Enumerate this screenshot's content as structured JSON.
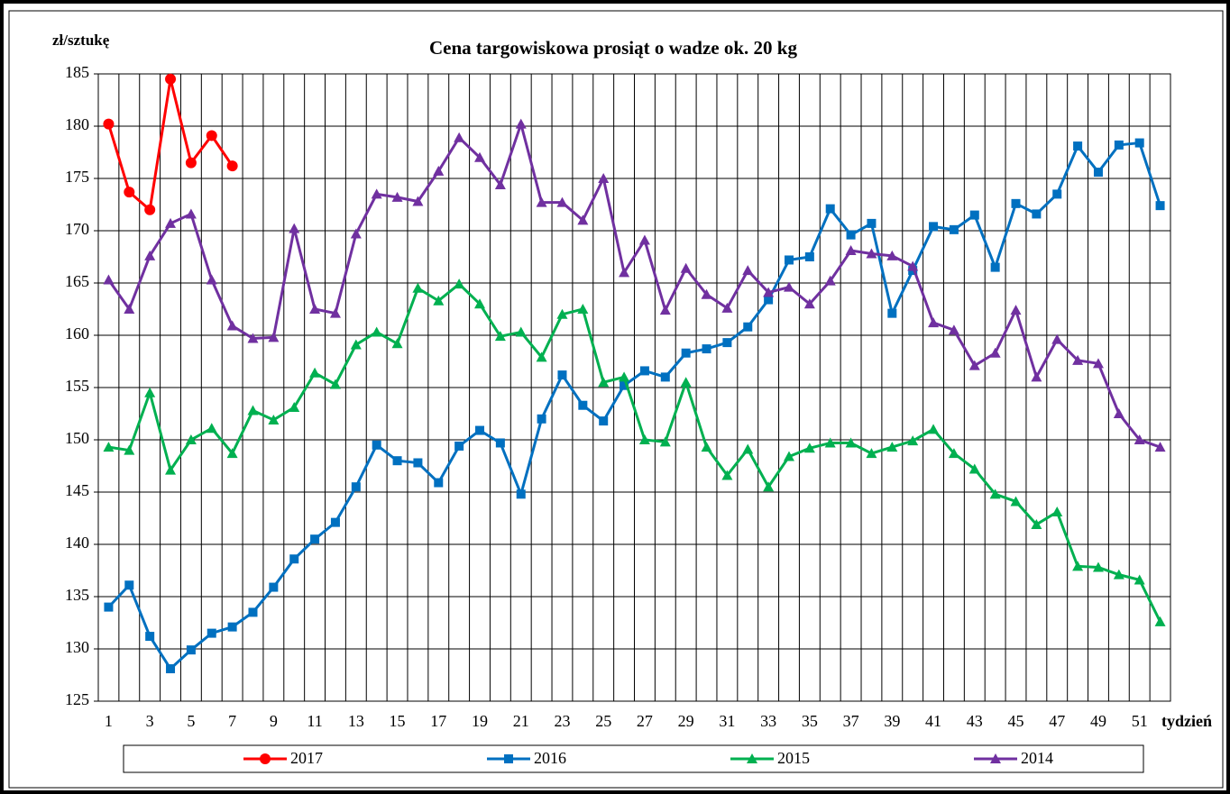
{
  "chart_data": {
    "type": "line",
    "title": "Cena targowiskowa prosiąt o wadze ok. 20 kg",
    "y_label": "zł/sztukę",
    "x_label": "tydzień",
    "categories": [
      1,
      null,
      3,
      null,
      5,
      null,
      7,
      null,
      9,
      null,
      11,
      null,
      13,
      null,
      15,
      null,
      17,
      null,
      19,
      null,
      21,
      null,
      23,
      null,
      25,
      null,
      27,
      null,
      29,
      null,
      31,
      null,
      33,
      null,
      35,
      null,
      37,
      null,
      39,
      null,
      41,
      null,
      43,
      null,
      45,
      null,
      47,
      null,
      49,
      null,
      51,
      null
    ],
    "ylim": [
      125,
      185
    ],
    "yticks": [
      125,
      130,
      135,
      140,
      145,
      150,
      155,
      160,
      165,
      170,
      175,
      180,
      185
    ],
    "grid": true,
    "legend": "bottom",
    "series": [
      {
        "name": "2017",
        "color": "#ff0000",
        "marker": "circle",
        "values": [
          180.2,
          173.7,
          172.0,
          184.5,
          176.5,
          179.1,
          176.2,
          null,
          null,
          null,
          null,
          null,
          null,
          null,
          null,
          null,
          null,
          null,
          null,
          null,
          null,
          null,
          null,
          null,
          null,
          null,
          null,
          null,
          null,
          null,
          null,
          null,
          null,
          null,
          null,
          null,
          null,
          null,
          null,
          null,
          null,
          null,
          null,
          null,
          null,
          null,
          null,
          null,
          null,
          null,
          null,
          null
        ]
      },
      {
        "name": "2016",
        "color": "#0070c0",
        "marker": "square",
        "values": [
          134.0,
          136.1,
          131.2,
          128.1,
          129.9,
          131.5,
          132.1,
          133.5,
          135.9,
          138.6,
          140.5,
          142.1,
          145.5,
          149.5,
          148.0,
          147.8,
          145.9,
          149.4,
          150.9,
          149.7,
          144.8,
          152.0,
          156.2,
          153.3,
          151.8,
          155.2,
          156.6,
          156.0,
          158.3,
          158.7,
          159.3,
          160.8,
          163.4,
          167.2,
          167.5,
          172.1,
          169.6,
          170.7,
          162.1,
          166.2,
          170.4,
          170.1,
          171.5,
          166.5,
          172.6,
          171.6,
          173.5,
          178.1,
          175.6,
          178.2,
          178.4,
          172.4
        ]
      },
      {
        "name": "2015",
        "color": "#00b050",
        "marker": "triangle",
        "values": [
          149.3,
          149.0,
          154.5,
          147.1,
          150.0,
          151.1,
          148.7,
          152.8,
          151.9,
          153.1,
          156.4,
          155.3,
          159.1,
          160.3,
          159.2,
          164.5,
          163.3,
          164.9,
          163.0,
          159.9,
          160.3,
          157.9,
          162.0,
          162.5,
          155.5,
          156.0,
          150.0,
          149.8,
          155.5,
          149.3,
          146.6,
          149.1,
          145.5,
          148.4,
          149.2,
          149.7,
          149.7,
          148.7,
          149.3,
          149.9,
          151.0,
          148.7,
          147.2,
          144.8,
          144.1,
          141.9,
          143.1,
          137.9,
          137.8,
          137.1,
          136.6,
          132.6
        ]
      },
      {
        "name": "2014",
        "color": "#7030a0",
        "marker": "triangle",
        "values": [
          165.3,
          162.5,
          167.6,
          170.7,
          171.6,
          165.3,
          160.9,
          159.7,
          159.8,
          170.2,
          162.5,
          162.1,
          169.7,
          173.5,
          173.2,
          172.8,
          175.7,
          178.9,
          177.0,
          174.4,
          180.2,
          172.7,
          172.7,
          171.0,
          175.0,
          166.0,
          169.1,
          162.4,
          166.4,
          163.9,
          162.6,
          166.2,
          164.1,
          164.6,
          163.0,
          165.2,
          168.1,
          167.8,
          167.6,
          166.6,
          161.2,
          160.5,
          157.1,
          158.3,
          162.4,
          156.0,
          159.6,
          157.6,
          157.3,
          152.5,
          150.0,
          149.3
        ]
      }
    ]
  }
}
